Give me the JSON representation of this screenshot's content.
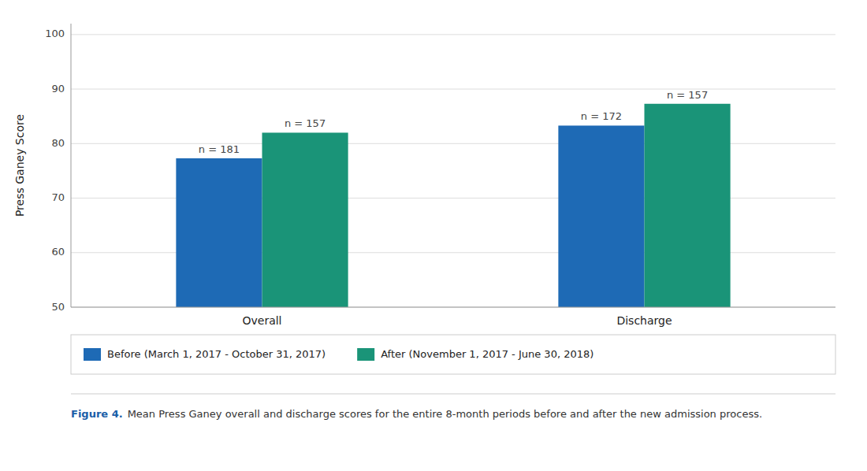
{
  "chart_data": {
    "type": "bar",
    "categories": [
      "Overall",
      "Discharge"
    ],
    "series": [
      {
        "name": "Before (March 1, 2017 - October 31, 2017)",
        "color": "#1e6ab5",
        "values": [
          77.3,
          83.3
        ],
        "annotations": [
          "n = 181",
          "n = 172"
        ]
      },
      {
        "name": "After (November 1, 2017 - June 30, 2018)",
        "color": "#1a9478",
        "values": [
          82.0,
          87.3
        ],
        "annotations": [
          "n = 157",
          "n = 157"
        ]
      }
    ],
    "y_label": "Press Ganey Score",
    "ylim": [
      50,
      102
    ],
    "yticks": [
      50,
      60,
      70,
      80,
      90,
      100
    ],
    "grid": true,
    "legend": "bottom",
    "caption": {
      "label": "Figure 4.",
      "text": "Mean Press Ganey overall and discharge scores for the entire 8-month periods before and after the new admission process."
    }
  }
}
